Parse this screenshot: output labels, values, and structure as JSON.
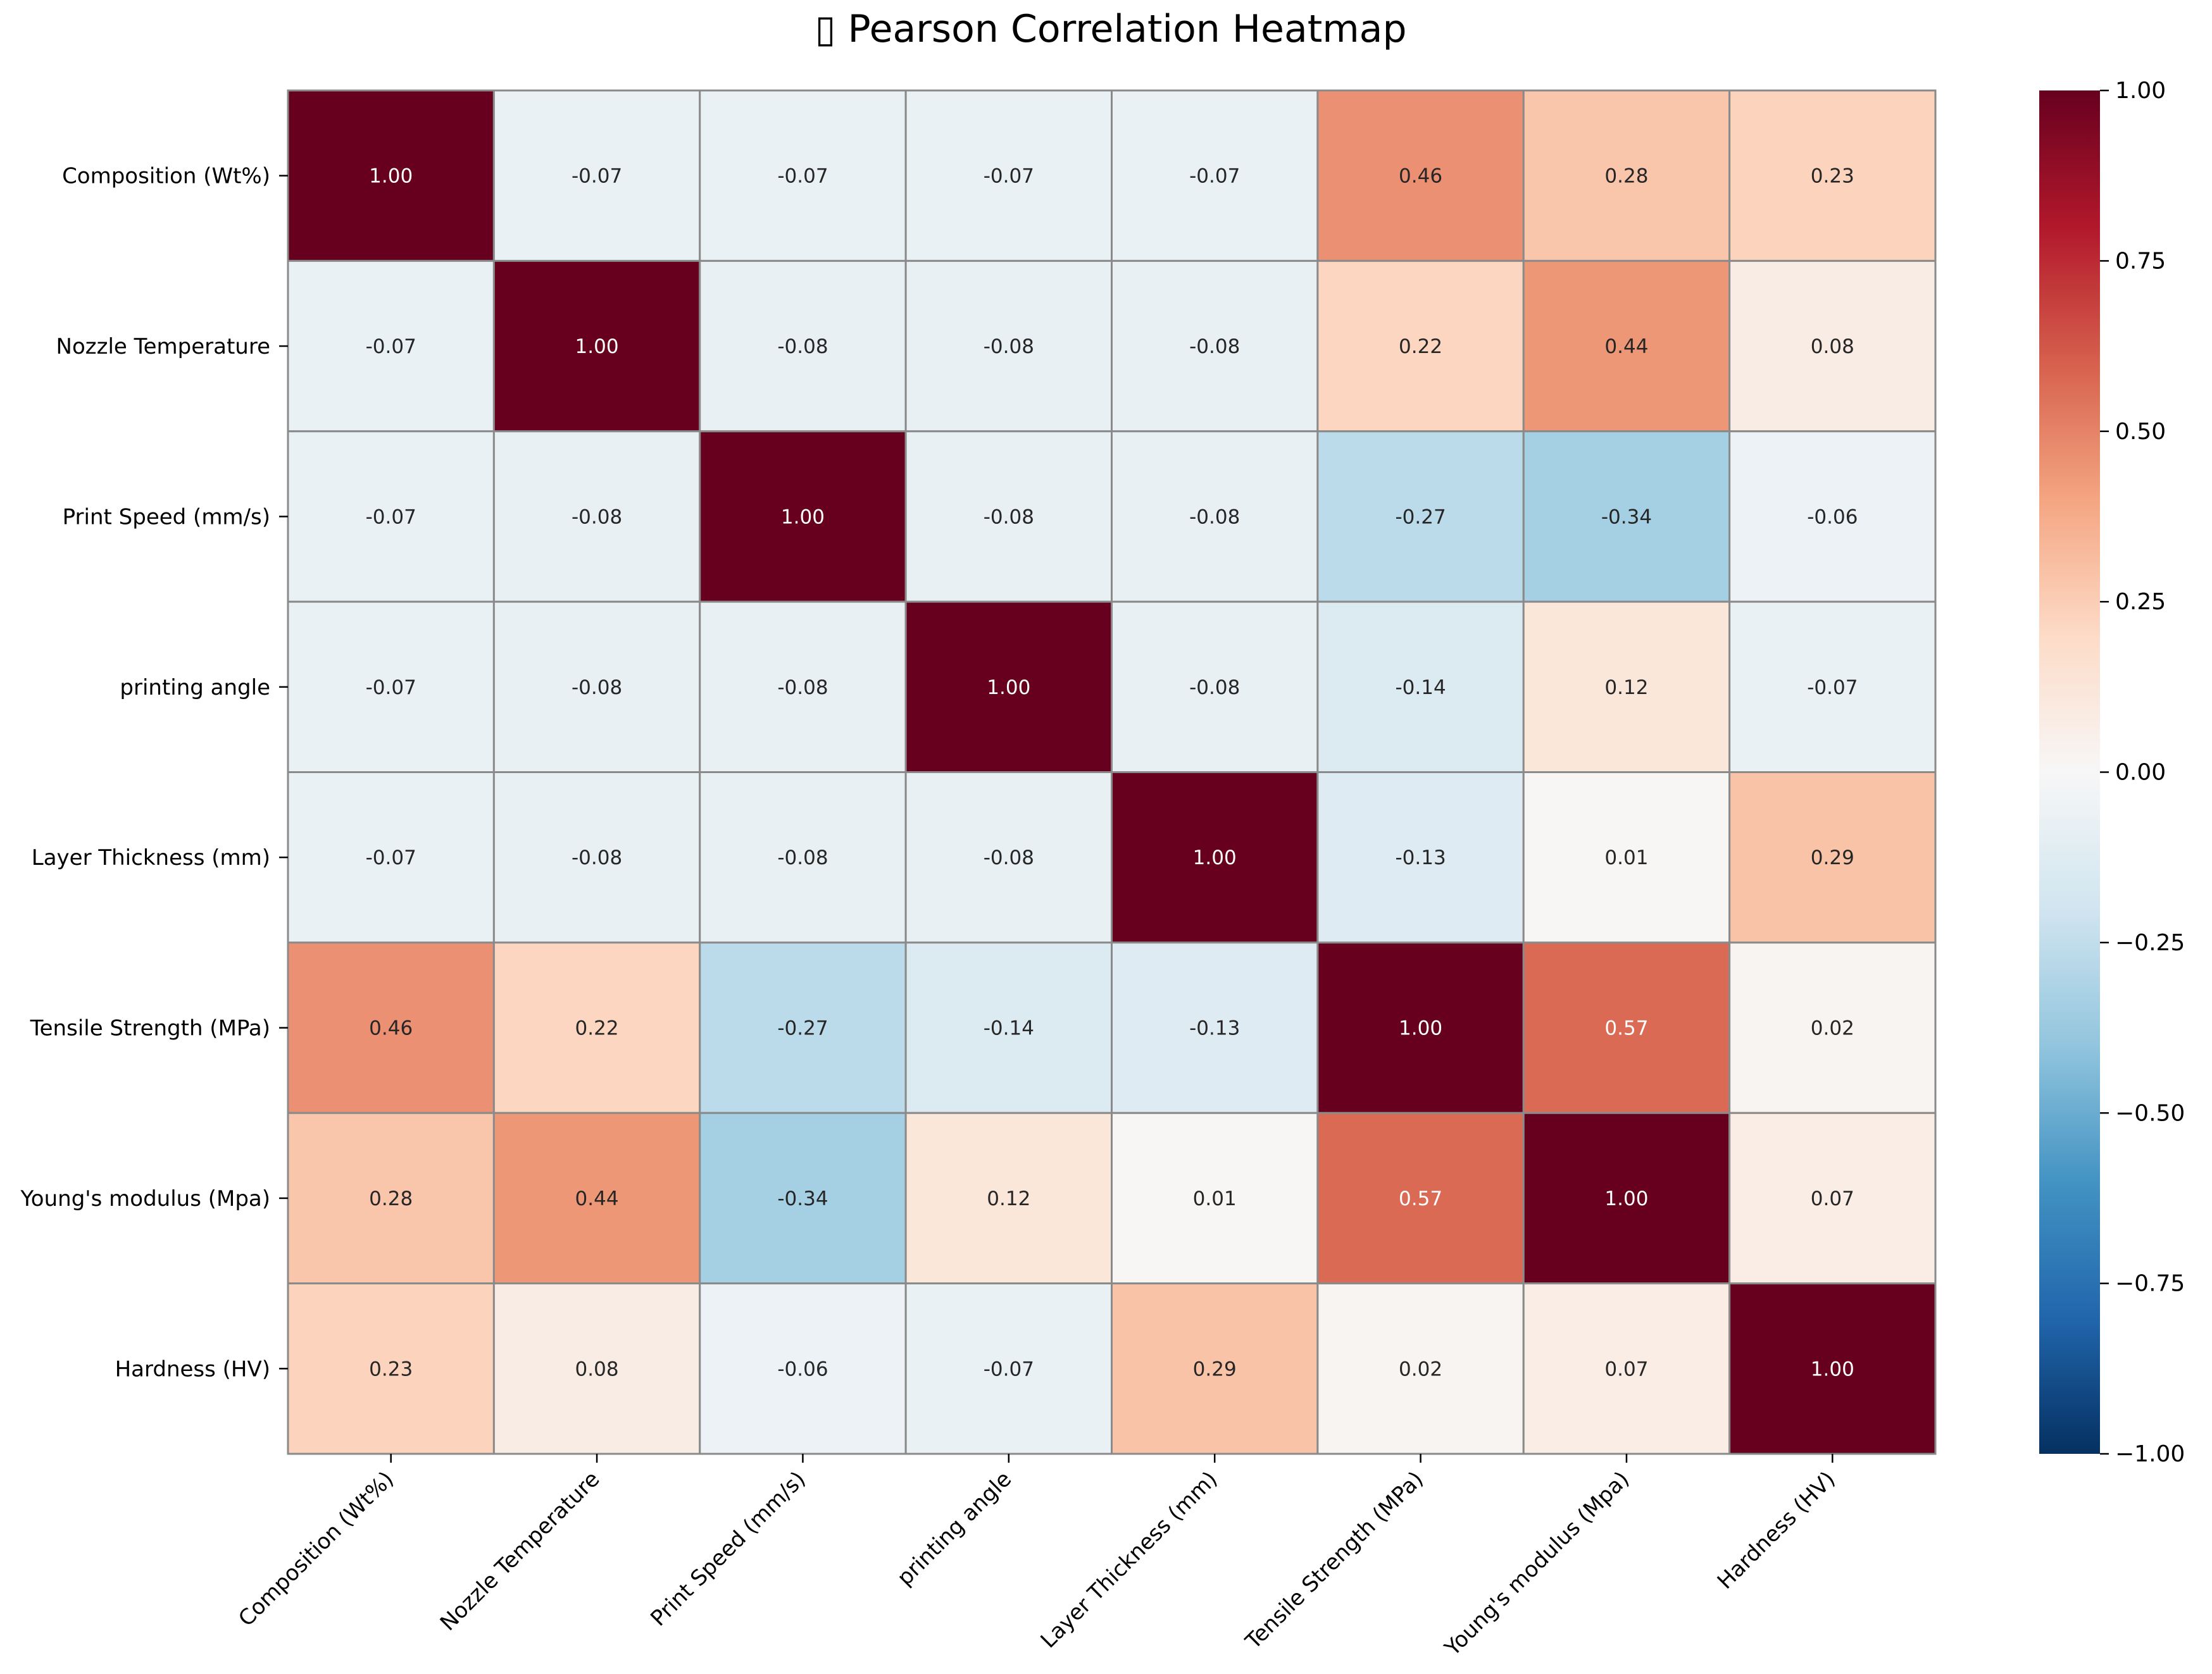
{
  "chart_data": {
    "type": "heatmap",
    "title": "▯ Pearson Correlation Heatmap",
    "row_labels": [
      "Composition (Wt%)",
      "Nozzle Temperature",
      "Print Speed (mm/s)",
      "printing angle",
      "Layer Thickness (mm)",
      "Tensile Strength (MPa)",
      "Young's modulus  (Mpa)",
      "Hardness (HV)"
    ],
    "col_labels": [
      "Composition (Wt%)",
      "Nozzle Temperature",
      "Print Speed (mm/s)",
      "printing angle",
      "Layer Thickness (mm)",
      "Tensile Strength (MPa)",
      "Young's modulus  (Mpa)",
      "Hardness (HV)"
    ],
    "values": [
      [
        1.0,
        -0.07,
        -0.07,
        -0.07,
        -0.07,
        0.46,
        0.28,
        0.23
      ],
      [
        -0.07,
        1.0,
        -0.08,
        -0.08,
        -0.08,
        0.22,
        0.44,
        0.08
      ],
      [
        -0.07,
        -0.08,
        1.0,
        -0.08,
        -0.08,
        -0.27,
        -0.34,
        -0.06
      ],
      [
        -0.07,
        -0.08,
        -0.08,
        1.0,
        -0.08,
        -0.14,
        0.12,
        -0.07
      ],
      [
        -0.07,
        -0.08,
        -0.08,
        -0.08,
        1.0,
        -0.13,
        0.01,
        0.29
      ],
      [
        0.46,
        0.22,
        -0.27,
        -0.14,
        -0.13,
        1.0,
        0.57,
        0.02
      ],
      [
        0.28,
        0.44,
        -0.34,
        0.12,
        0.01,
        0.57,
        1.0,
        0.07
      ],
      [
        0.23,
        0.08,
        -0.06,
        -0.07,
        0.29,
        0.02,
        0.07,
        1.0
      ]
    ],
    "value_format": "2 decimals",
    "colormap": "RdBu_r",
    "vmin": -1.0,
    "vmax": 1.0,
    "colorbar_ticks": [
      1.0,
      0.75,
      0.5,
      0.25,
      0.0,
      -0.25,
      -0.5,
      -0.75,
      -1.0
    ],
    "colorbar_tick_labels": [
      "1.00",
      "0.75",
      "0.50",
      "0.25",
      "0.00",
      "−0.25",
      "−0.50",
      "−0.75",
      "−1.00"
    ],
    "colorbar_placement": "right",
    "colors": {
      "grid_line": "#8a8a8a",
      "text_dark": "#262626",
      "text_light": "#ffffff",
      "title": "#000000"
    }
  }
}
